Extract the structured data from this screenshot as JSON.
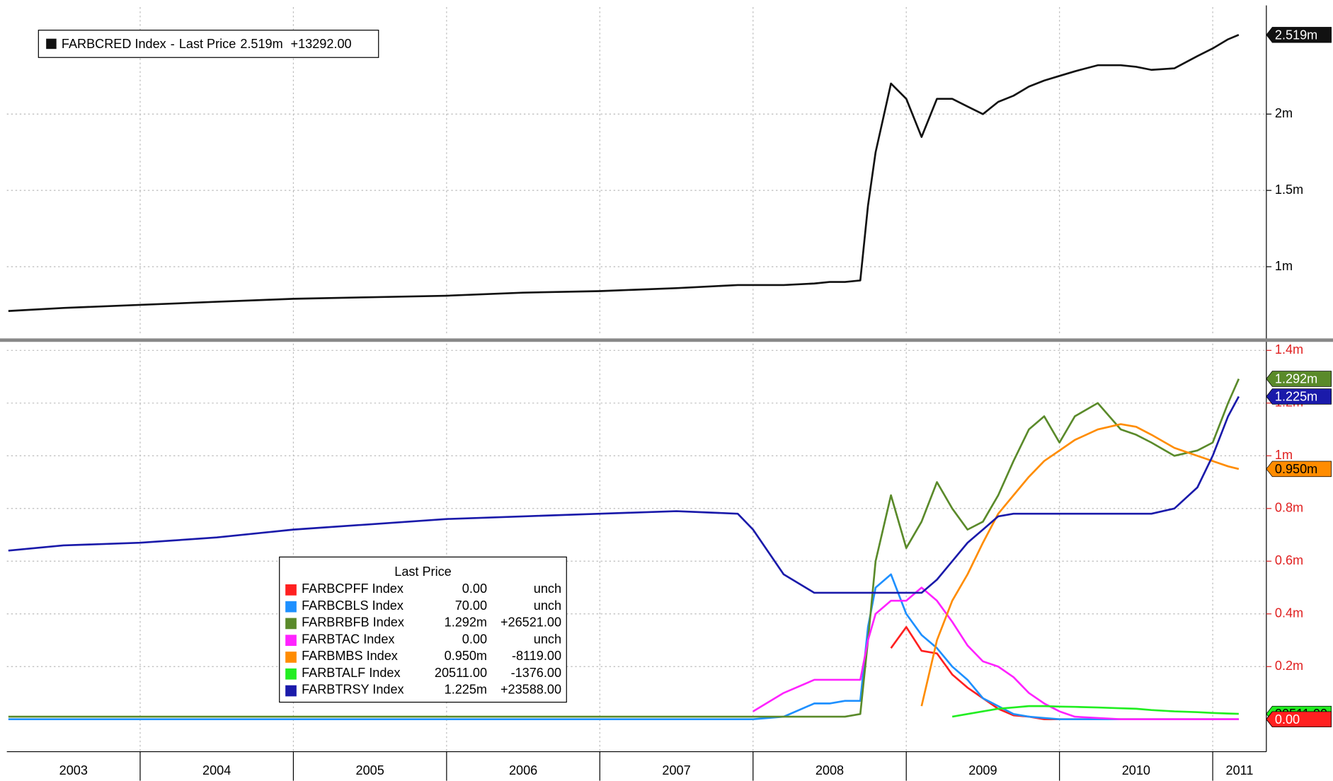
{
  "chart_data": [
    {
      "type": "line",
      "separator": "-",
      "legend_title": "Last Price",
      "x": [
        2003.14,
        2003.5,
        2004,
        2004.5,
        2005,
        2005.5,
        2006,
        2006.5,
        2007,
        2007.5,
        2007.9,
        2008.0,
        2008.2,
        2008.4,
        2008.5,
        2008.6,
        2008.7,
        2008.75,
        2008.8,
        2008.9,
        2009.0,
        2009.1,
        2009.2,
        2009.3,
        2009.4,
        2009.5,
        2009.6,
        2009.7,
        2009.8,
        2009.9,
        2010.0,
        2010.1,
        2010.25,
        2010.4,
        2010.5,
        2010.6,
        2010.75,
        2010.9,
        2011.0,
        2011.1,
        2011.17
      ],
      "xlim": [
        2003.13,
        2011.35
      ],
      "xticks": [
        2003,
        2004,
        2005,
        2006,
        2007,
        2008,
        2009,
        2010,
        2011
      ],
      "ylim": [
        547000,
        2701000
      ],
      "yticks": [
        {
          "value": 1000000,
          "label": "1m"
        },
        {
          "value": 1500000,
          "label": "1.5m"
        },
        {
          "value": 2000000,
          "label": "2m"
        }
      ],
      "grid": true,
      "series": [
        {
          "name": "FARBCRED Index",
          "color": "#111111",
          "last_price": "2.519m",
          "change": "+13292.00",
          "values": [
            710000,
            730000,
            750000,
            770000,
            790000,
            800000,
            810000,
            830000,
            840000,
            860000,
            880000,
            880000,
            880000,
            890000,
            900000,
            900000,
            910000,
            1400000,
            1750000,
            2200000,
            2100000,
            1850000,
            2100000,
            2100000,
            2050000,
            2000000,
            2080000,
            2120000,
            2180000,
            2220000,
            2250000,
            2280000,
            2320000,
            2320000,
            2310000,
            2290000,
            2300000,
            2380000,
            2430000,
            2490000,
            2519000
          ]
        }
      ]
    },
    {
      "type": "line",
      "legend_title": "Last Price",
      "x": [
        2003.14,
        2003.5,
        2004,
        2004.5,
        2005,
        2005.5,
        2006,
        2006.5,
        2007,
        2007.5,
        2007.9,
        2008.0,
        2008.2,
        2008.4,
        2008.5,
        2008.6,
        2008.7,
        2008.75,
        2008.8,
        2008.9,
        2009.0,
        2009.1,
        2009.2,
        2009.3,
        2009.4,
        2009.5,
        2009.6,
        2009.7,
        2009.8,
        2009.9,
        2010.0,
        2010.1,
        2010.25,
        2010.4,
        2010.5,
        2010.6,
        2010.75,
        2010.9,
        2011.0,
        2011.1,
        2011.17
      ],
      "xlim": [
        2003.13,
        2011.35
      ],
      "xticks": [
        2003,
        2004,
        2005,
        2006,
        2007,
        2008,
        2009,
        2010,
        2011
      ],
      "ylim": [
        -123000,
        1426000
      ],
      "yticks": [
        {
          "value": 200000,
          "label": "0.2m"
        },
        {
          "value": 400000,
          "label": "0.4m"
        },
        {
          "value": 600000,
          "label": "0.6m"
        },
        {
          "value": 800000,
          "label": "0.8m"
        },
        {
          "value": 1000000,
          "label": "1m"
        },
        {
          "value": 1200000,
          "label": "1.2m"
        },
        {
          "value": 1400000,
          "label": "1.4m"
        }
      ],
      "grid": true,
      "series": [
        {
          "name": "FARBCPFF Index",
          "color": "#ff2020",
          "last_price": "0.00",
          "change": "unch",
          "values": [
            null,
            null,
            null,
            null,
            null,
            null,
            null,
            null,
            null,
            null,
            null,
            null,
            null,
            null,
            null,
            null,
            null,
            null,
            null,
            270000,
            350000,
            260000,
            250000,
            170000,
            120000,
            80000,
            40000,
            15000,
            10000,
            0,
            0,
            0,
            0,
            0,
            0,
            0,
            0,
            0,
            0,
            0,
            0
          ]
        },
        {
          "name": "FARBCBLS Index",
          "color": "#1e90ff",
          "last_price": "70.00",
          "change": "unch",
          "values": [
            0,
            0,
            0,
            0,
            0,
            0,
            0,
            0,
            0,
            0,
            0,
            0,
            10000,
            60000,
            60000,
            70000,
            70000,
            350000,
            500000,
            550000,
            400000,
            320000,
            270000,
            200000,
            150000,
            80000,
            50000,
            20000,
            10000,
            5000,
            100,
            100,
            100,
            100,
            100,
            100,
            100,
            100,
            100,
            100,
            70
          ]
        },
        {
          "name": "FARBRBFB Index",
          "color": "#5a8a2a",
          "last_price": "1.292m",
          "change": "+26521.00",
          "values": [
            10000,
            10000,
            10000,
            10000,
            10000,
            10000,
            10000,
            10000,
            10000,
            10000,
            10000,
            10000,
            10000,
            10000,
            10000,
            10000,
            20000,
            300000,
            600000,
            850000,
            650000,
            750000,
            900000,
            800000,
            720000,
            750000,
            850000,
            980000,
            1100000,
            1150000,
            1050000,
            1150000,
            1200000,
            1100000,
            1080000,
            1050000,
            1000000,
            1020000,
            1050000,
            1200000,
            1292000
          ]
        },
        {
          "name": "FARBTAC Index",
          "color": "#ff22ff",
          "last_price": "0.00",
          "change": "unch",
          "values": [
            null,
            null,
            null,
            null,
            null,
            null,
            null,
            null,
            null,
            null,
            null,
            30000,
            100000,
            150000,
            150000,
            150000,
            150000,
            300000,
            400000,
            450000,
            450000,
            500000,
            450000,
            370000,
            280000,
            220000,
            200000,
            160000,
            100000,
            60000,
            30000,
            10000,
            5000,
            0,
            0,
            0,
            0,
            0,
            0,
            0,
            0
          ]
        },
        {
          "name": "FARBMBS Index",
          "color": "#ff8c00",
          "last_price": "0.950m",
          "change": "-8119.00",
          "values": [
            null,
            null,
            null,
            null,
            null,
            null,
            null,
            null,
            null,
            null,
            null,
            null,
            null,
            null,
            null,
            null,
            null,
            null,
            null,
            null,
            null,
            50000,
            300000,
            450000,
            550000,
            670000,
            780000,
            850000,
            920000,
            980000,
            1020000,
            1060000,
            1100000,
            1120000,
            1110000,
            1080000,
            1030000,
            1000000,
            980000,
            960000,
            950000
          ]
        },
        {
          "name": "FARBTALF Index",
          "color": "#22ee22",
          "last_price": "20511.00",
          "change": "-1376.00",
          "values": [
            null,
            null,
            null,
            null,
            null,
            null,
            null,
            null,
            null,
            null,
            null,
            null,
            null,
            null,
            null,
            null,
            null,
            null,
            null,
            null,
            null,
            null,
            null,
            10000,
            20000,
            30000,
            40000,
            45000,
            50000,
            50000,
            48000,
            47000,
            45000,
            42000,
            40000,
            35000,
            30000,
            27000,
            24000,
            22000,
            20511
          ]
        },
        {
          "name": "FARBTRSY Index",
          "color": "#1a1aaa",
          "last_price": "1.225m",
          "change": "+23588.00",
          "values": [
            640000,
            660000,
            670000,
            690000,
            720000,
            740000,
            760000,
            770000,
            780000,
            790000,
            780000,
            720000,
            550000,
            480000,
            480000,
            480000,
            480000,
            480000,
            480000,
            480000,
            480000,
            480000,
            530000,
            600000,
            670000,
            720000,
            770000,
            780000,
            780000,
            780000,
            780000,
            780000,
            780000,
            780000,
            780000,
            780000,
            800000,
            880000,
            1000000,
            1150000,
            1225000
          ]
        }
      ]
    }
  ]
}
